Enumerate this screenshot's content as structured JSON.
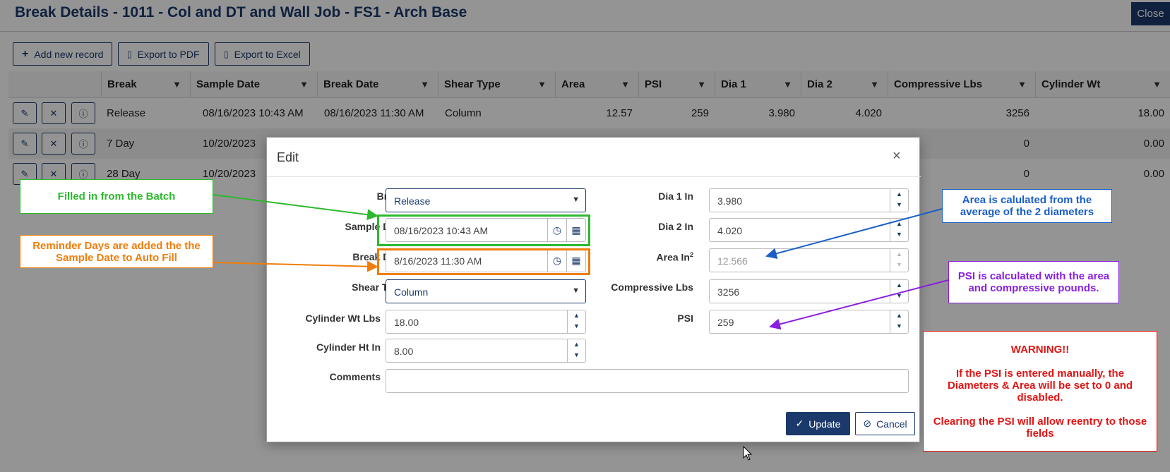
{
  "page": {
    "title": "Break Details - 1011 - Col and DT and Wall Job - FS1 - Arch Base",
    "close_label": "Close"
  },
  "toolbar": {
    "add_label": "Add new record",
    "pdf_label": "Export to PDF",
    "excel_label": "Export to Excel"
  },
  "grid": {
    "columns": [
      "Break",
      "Sample Date",
      "Break Date",
      "Shear Type",
      "Area",
      "PSI",
      "Dia 1",
      "Dia 2",
      "Compressive Lbs",
      "Cylinder Wt"
    ],
    "rows": [
      {
        "break": "Release",
        "sample_date": "08/16/2023 10:43 AM",
        "break_date": "08/16/2023 11:30 AM",
        "shear_type": "Column",
        "area": "12.57",
        "psi": "259",
        "dia1": "3.980",
        "dia2": "4.020",
        "compressive": "3256",
        "cyl_wt": "18.00"
      },
      {
        "break": "7 Day",
        "sample_date": "10/20/2023",
        "compressive": "0",
        "cyl_wt": "0.00"
      },
      {
        "break": "28 Day",
        "sample_date": "10/20/2023",
        "compressive": "0",
        "cyl_wt": "0.00"
      }
    ]
  },
  "dialog": {
    "title": "Edit",
    "close_glyph": "×",
    "left": {
      "break_label": "Break",
      "break_value": "Release",
      "sample_date_label": "Sample Date",
      "sample_date_value": "08/16/2023 10:43 AM",
      "break_date_label": "Break Date",
      "break_date_value": "8/16/2023 11:30 AM",
      "shear_type_label": "Shear Type",
      "shear_type_value": "Column",
      "cyl_wt_label": "Cylinder Wt Lbs",
      "cyl_wt_value": "18.00",
      "cyl_ht_label": "Cylinder Ht In",
      "cyl_ht_value": "8.00",
      "comments_label": "Comments",
      "comments_value": ""
    },
    "right": {
      "dia1_label": "Dia 1 In",
      "dia1_value": "3.980",
      "dia2_label": "Dia 2 In",
      "dia2_value": "4.020",
      "area_label": "Area In",
      "area_sup": "2",
      "area_value": "12.566",
      "compressive_label": "Compressive Lbs",
      "compressive_value": "3256",
      "psi_label": "PSI",
      "psi_value": "259"
    },
    "update_label": "Update",
    "cancel_label": "Cancel",
    "required_mark": "*"
  },
  "callouts": {
    "batch": "Filled in from the Batch",
    "reminder": "Reminder Days are added the the Sample Date to Auto Fill",
    "area": "Area is calulated from the average of the 2 diameters",
    "psi": "PSI is calculated with the area and compressive pounds.",
    "warning_title": "WARNING!!",
    "warning_body1": "If the PSI is entered manually, the Diameters & Area will be set to 0 and disabled.",
    "warning_body2": "Clearing the PSI will allow reentry to those fields"
  },
  "colors": {
    "primary": "#1b3a6b",
    "green": "#2db92d",
    "orange": "#f07d0a",
    "blue": "#1a5fc8",
    "purple": "#8a1ee0",
    "red": "#e01414"
  }
}
